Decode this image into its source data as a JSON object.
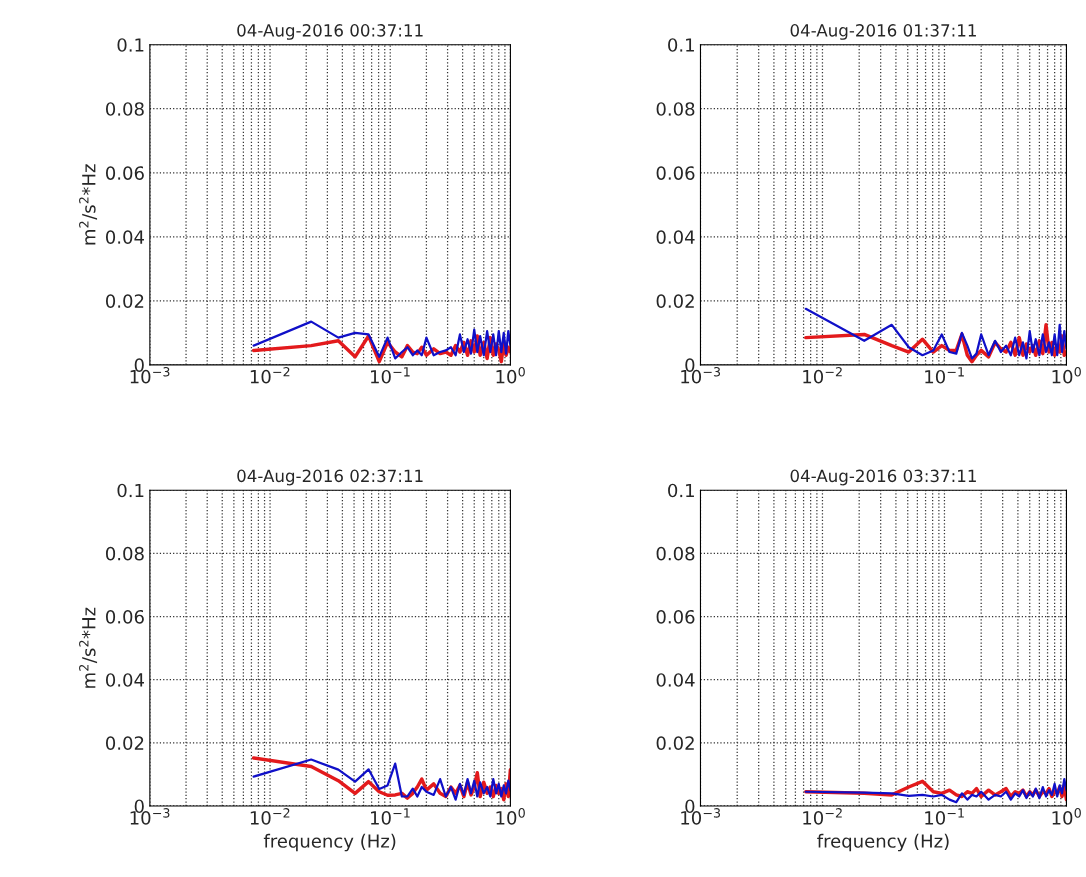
{
  "chart_data": [
    {
      "type": "line",
      "title": "04-Aug-2016 00:37:11",
      "ylabel": "m$^{2}$/s$^{2}$*Hz",
      "log": "x",
      "grid": true,
      "xlim": [
        0.001,
        1
      ],
      "xticks": [
        {
          "value": 0.001,
          "label": "10$^{−3}$"
        },
        {
          "value": 0.01,
          "label": "10$^{−2}$"
        },
        {
          "value": 0.1,
          "label": "10$^{−1}$"
        },
        {
          "value": 1,
          "label": "10$^{0}$"
        }
      ],
      "ylim": [
        0,
        0.1
      ],
      "yticks": [
        0,
        0.02,
        0.04,
        0.06,
        0.08,
        0.1
      ],
      "x": [
        0.0073,
        0.022,
        0.037,
        0.051,
        0.066,
        0.081,
        0.095,
        0.11,
        0.125,
        0.139,
        0.154,
        0.168,
        0.183,
        0.2,
        0.23,
        0.26,
        0.29,
        0.32,
        0.35,
        0.38,
        0.41,
        0.44,
        0.47,
        0.5,
        0.53,
        0.56,
        0.6,
        0.64,
        0.68,
        0.72,
        0.76,
        0.8,
        0.84,
        0.88,
        0.92,
        0.96,
        1.0
      ],
      "series": [
        {
          "color": "#e31a1c",
          "values": [
            0.0045,
            0.006,
            0.0075,
            0.0025,
            0.009,
            0.001,
            0.007,
            0.004,
            0.0025,
            0.006,
            0.004,
            0.0035,
            0.0055,
            0.003,
            0.005,
            0.0035,
            0.004,
            0.003,
            0.006,
            0.004,
            0.007,
            0.003,
            0.0075,
            0.004,
            0.009,
            0.003,
            0.007,
            0.002,
            0.0085,
            0.003,
            0.0065,
            0.0045,
            0.001,
            0.007,
            0.003,
            0.0055,
            0.004
          ]
        },
        {
          "color": "#1010c8",
          "values": [
            0.006,
            0.0135,
            0.0085,
            0.01,
            0.0095,
            0.0025,
            0.0085,
            0.002,
            0.004,
            0.0055,
            0.003,
            0.0045,
            0.003,
            0.0085,
            0.003,
            0.004,
            0.0045,
            0.0055,
            0.003,
            0.0095,
            0.004,
            0.008,
            0.0035,
            0.011,
            0.004,
            0.009,
            0.003,
            0.0105,
            0.004,
            0.0095,
            0.003,
            0.0105,
            0.004,
            0.01,
            0.0035,
            0.0105,
            0.006
          ]
        }
      ]
    },
    {
      "type": "line",
      "title": "04-Aug-2016 01:37:11",
      "log": "x",
      "grid": true,
      "xlim": [
        0.001,
        1
      ],
      "xticks": [
        {
          "value": 0.001,
          "label": "10$^{−3}$"
        },
        {
          "value": 0.01,
          "label": "10$^{−2}$"
        },
        {
          "value": 0.1,
          "label": "10$^{−1}$"
        },
        {
          "value": 1,
          "label": "10$^{0}$"
        }
      ],
      "ylim": [
        0,
        0.1
      ],
      "yticks": [
        0,
        0.02,
        0.04,
        0.06,
        0.08,
        0.1
      ],
      "x": [
        0.0073,
        0.022,
        0.037,
        0.051,
        0.066,
        0.081,
        0.095,
        0.11,
        0.125,
        0.139,
        0.154,
        0.168,
        0.183,
        0.2,
        0.23,
        0.26,
        0.29,
        0.32,
        0.35,
        0.38,
        0.41,
        0.44,
        0.47,
        0.5,
        0.53,
        0.56,
        0.6,
        0.64,
        0.68,
        0.72,
        0.76,
        0.8,
        0.84,
        0.88,
        0.92,
        0.96,
        1.0
      ],
      "series": [
        {
          "color": "#e31a1c",
          "values": [
            0.0085,
            0.0095,
            0.006,
            0.004,
            0.008,
            0.004,
            0.006,
            0.0045,
            0.0045,
            0.0095,
            0.003,
            0.001,
            0.003,
            0.0045,
            0.0025,
            0.007,
            0.005,
            0.004,
            0.007,
            0.003,
            0.0085,
            0.003,
            0.0065,
            0.004,
            0.006,
            0.003,
            0.0075,
            0.0035,
            0.0125,
            0.004,
            0.007,
            0.003,
            0.006,
            0.004,
            0.009,
            0.003,
            0.004
          ]
        },
        {
          "color": "#1010c8",
          "values": [
            0.0175,
            0.0075,
            0.0125,
            0.0055,
            0.003,
            0.0045,
            0.0095,
            0.004,
            0.0035,
            0.01,
            0.006,
            0.002,
            0.0035,
            0.0095,
            0.003,
            0.0075,
            0.004,
            0.006,
            0.003,
            0.0085,
            0.003,
            0.007,
            0.002,
            0.0105,
            0.004,
            0.008,
            0.003,
            0.0095,
            0.004,
            0.007,
            0.003,
            0.0095,
            0.003,
            0.0125,
            0.004,
            0.0105,
            0.005
          ]
        }
      ]
    },
    {
      "type": "line",
      "title": "04-Aug-2016 02:37:11",
      "xlabel": "frequency (Hz)",
      "ylabel": "m$^{2}$/s$^{2}$*Hz",
      "log": "x",
      "grid": true,
      "xlim": [
        0.001,
        1
      ],
      "xticks": [
        {
          "value": 0.001,
          "label": "10$^{−3}$"
        },
        {
          "value": 0.01,
          "label": "10$^{−2}$"
        },
        {
          "value": 0.1,
          "label": "10$^{−1}$"
        },
        {
          "value": 1,
          "label": "10$^{0}$"
        }
      ],
      "ylim": [
        0,
        0.1
      ],
      "yticks": [
        0,
        0.02,
        0.04,
        0.06,
        0.08,
        0.1
      ],
      "x": [
        0.0073,
        0.022,
        0.037,
        0.051,
        0.066,
        0.081,
        0.095,
        0.11,
        0.125,
        0.139,
        0.154,
        0.168,
        0.183,
        0.2,
        0.23,
        0.26,
        0.29,
        0.32,
        0.35,
        0.38,
        0.41,
        0.44,
        0.47,
        0.5,
        0.53,
        0.56,
        0.6,
        0.64,
        0.68,
        0.72,
        0.76,
        0.8,
        0.84,
        0.88,
        0.92,
        0.96,
        1.0
      ],
      "series": [
        {
          "color": "#e31a1c",
          "values": [
            0.0152,
            0.0125,
            0.008,
            0.004,
            0.0077,
            0.0045,
            0.0034,
            0.0035,
            0.004,
            0.0025,
            0.004,
            0.006,
            0.0085,
            0.005,
            0.007,
            0.004,
            0.003,
            0.006,
            0.004,
            0.0065,
            0.003,
            0.0075,
            0.0035,
            0.006,
            0.0105,
            0.003,
            0.0075,
            0.004,
            0.006,
            0.003,
            0.0065,
            0.004,
            0.0055,
            0.002,
            0.007,
            0.003,
            0.0115
          ]
        },
        {
          "color": "#1010c8",
          "values": [
            0.0093,
            0.0147,
            0.0115,
            0.0077,
            0.0116,
            0.0054,
            0.0065,
            0.0134,
            0.003,
            0.003,
            0.0055,
            0.003,
            0.006,
            0.0045,
            0.0035,
            0.0085,
            0.003,
            0.006,
            0.002,
            0.007,
            0.0035,
            0.0085,
            0.004,
            0.008,
            0.003,
            0.0075,
            0.004,
            0.006,
            0.003,
            0.0085,
            0.004,
            0.007,
            0.003,
            0.0065,
            0.004,
            0.008,
            0.005
          ]
        }
      ]
    },
    {
      "type": "line",
      "title": "04-Aug-2016 03:37:11",
      "xlabel": "frequency (Hz)",
      "log": "x",
      "grid": true,
      "xlim": [
        0.001,
        1
      ],
      "xticks": [
        {
          "value": 0.001,
          "label": "10$^{−3}$"
        },
        {
          "value": 0.01,
          "label": "10$^{−2}$"
        },
        {
          "value": 0.1,
          "label": "10$^{−1}$"
        },
        {
          "value": 1,
          "label": "10$^{0}$"
        }
      ],
      "ylim": [
        0,
        0.1
      ],
      "yticks": [
        0,
        0.02,
        0.04,
        0.06,
        0.08,
        0.1
      ],
      "x": [
        0.0073,
        0.022,
        0.037,
        0.051,
        0.066,
        0.081,
        0.095,
        0.11,
        0.125,
        0.139,
        0.154,
        0.168,
        0.183,
        0.2,
        0.23,
        0.26,
        0.29,
        0.32,
        0.35,
        0.38,
        0.41,
        0.44,
        0.47,
        0.5,
        0.53,
        0.56,
        0.6,
        0.64,
        0.68,
        0.72,
        0.76,
        0.8,
        0.84,
        0.88,
        0.92,
        0.96,
        1.0
      ],
      "series": [
        {
          "color": "#e31a1c",
          "values": [
            0.0045,
            0.004,
            0.0035,
            0.006,
            0.0078,
            0.0045,
            0.004,
            0.005,
            0.0035,
            0.003,
            0.0045,
            0.004,
            0.0055,
            0.003,
            0.005,
            0.0035,
            0.0045,
            0.0055,
            0.003,
            0.0045,
            0.004,
            0.005,
            0.003,
            0.0045,
            0.0035,
            0.005,
            0.003,
            0.0045,
            0.004,
            0.0055,
            0.003,
            0.0045,
            0.004,
            0.006,
            0.003,
            0.0065,
            0.002
          ]
        },
        {
          "color": "#1010c8",
          "values": [
            0.0045,
            0.0042,
            0.004,
            0.0032,
            0.0035,
            0.003,
            0.0035,
            0.002,
            0.0012,
            0.004,
            0.002,
            0.0035,
            0.003,
            0.0045,
            0.002,
            0.0035,
            0.003,
            0.0045,
            0.002,
            0.004,
            0.003,
            0.005,
            0.0025,
            0.0045,
            0.003,
            0.0055,
            0.0025,
            0.006,
            0.003,
            0.005,
            0.0035,
            0.007,
            0.003,
            0.0065,
            0.004,
            0.0085,
            0.005
          ]
        }
      ]
    }
  ]
}
